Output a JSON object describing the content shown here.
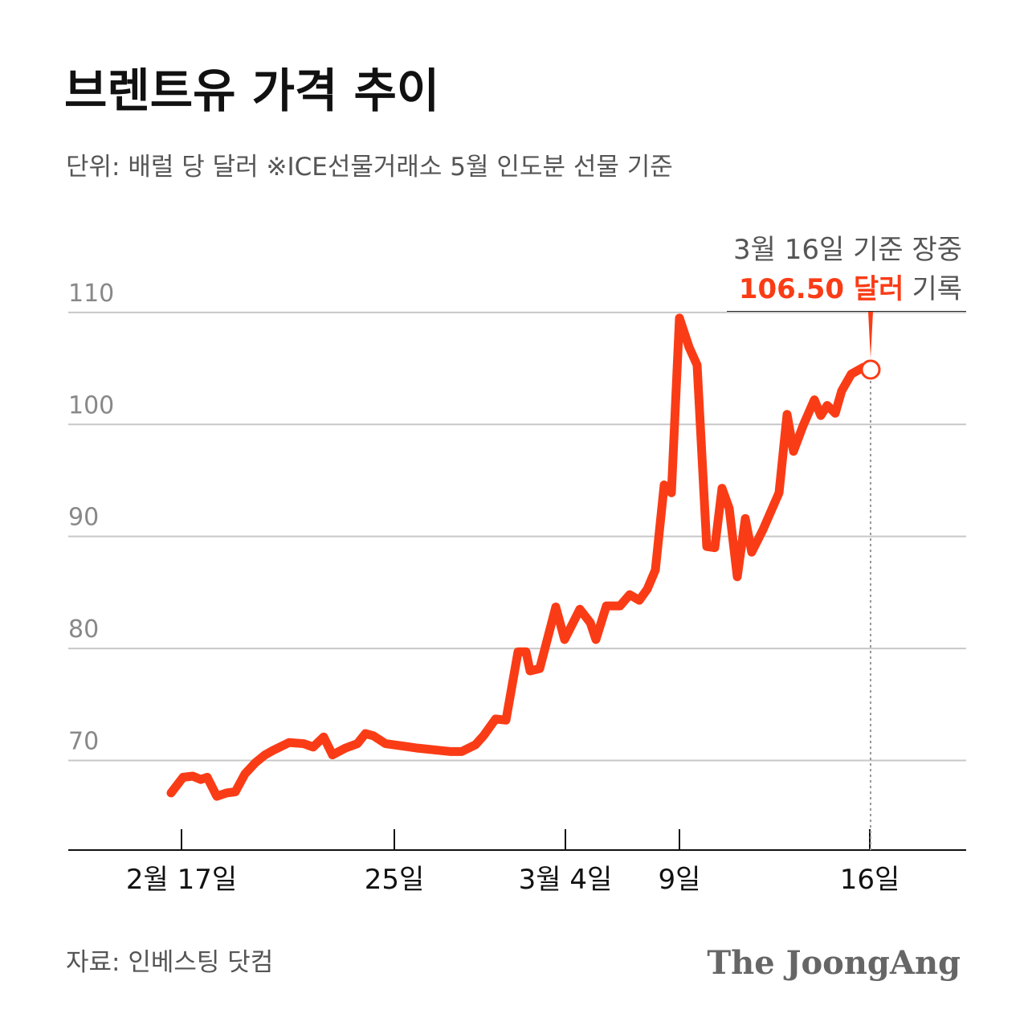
{
  "chart_data": {
    "type": "line",
    "title": "브렌트유 가격 추이",
    "subtitle": "단위: 배럴 당 달러   ※ICE선물거래소 5월 인도분 선물 기준",
    "x": [
      12.8,
      14.3,
      15.5,
      16.5,
      17.3,
      18.5,
      19.7,
      20.8,
      22.0,
      23.3,
      24.5,
      25.5,
      27.5,
      29.3,
      30.5,
      31.8,
      32.9,
      34.5,
      36.0,
      37.0,
      38.0,
      39.5,
      43.5,
      47.5,
      49.0,
      50.7,
      51.7,
      53.2,
      54.5,
      56.0,
      57.0,
      57.5,
      58.7,
      60.7,
      61.8,
      63.7,
      65.0,
      65.7,
      67.0,
      68.7,
      69.9,
      71.1,
      72.1,
      73.1,
      74.2,
      75.1,
      76.1,
      77.3,
      78.3,
      79.5,
      80.5,
      81.4,
      82.3,
      83.3,
      84.3,
      85.1,
      86.5,
      88.5,
      89.5,
      90.3,
      91.5,
      92.9,
      93.7,
      94.5,
      95.5,
      96.3,
      97.5,
      99.0,
      99.9
    ],
    "values": [
      67.1,
      68.5,
      68.6,
      68.3,
      68.5,
      66.8,
      67.1,
      67.2,
      68.8,
      69.8,
      70.5,
      70.9,
      71.6,
      71.5,
      71.2,
      72.1,
      70.5,
      71.1,
      71.5,
      72.4,
      72.2,
      71.5,
      71.1,
      70.8,
      70.8,
      71.4,
      72.2,
      73.7,
      73.6,
      79.7,
      79.7,
      78.0,
      78.2,
      83.7,
      80.8,
      83.5,
      82.3,
      80.8,
      83.8,
      83.8,
      84.8,
      84.3,
      85.3,
      87.0,
      94.6,
      93.9,
      109.5,
      106.9,
      105.3,
      89.1,
      89.0,
      94.3,
      92.5,
      86.4,
      91.6,
      88.6,
      90.6,
      93.9,
      100.9,
      97.6,
      99.9,
      102.2,
      100.8,
      101.7,
      101.0,
      103.0,
      104.5,
      105.1,
      104.9
    ],
    "color": "#fa3c16",
    "xlim": [
      0,
      111.8
    ],
    "xticks": [
      {
        "value": 14.1,
        "label": "2월 17일"
      },
      {
        "value": 40.6,
        "label": "25일"
      },
      {
        "value": 61.9,
        "label": "3월 4일"
      },
      {
        "value": 76.1,
        "label": "9일"
      },
      {
        "value": 99.8,
        "label": "16일"
      }
    ],
    "ylim": [
      62,
      112
    ],
    "yticks": [
      70,
      80,
      90,
      100,
      110
    ],
    "grid": true,
    "annotation": {
      "line1": "3월 16일 기준 장중",
      "highlight": "106.50 달러",
      "suffix": "기록"
    },
    "source": "자료: 인베스팅 닷컴",
    "logo": "The JoongAng"
  }
}
